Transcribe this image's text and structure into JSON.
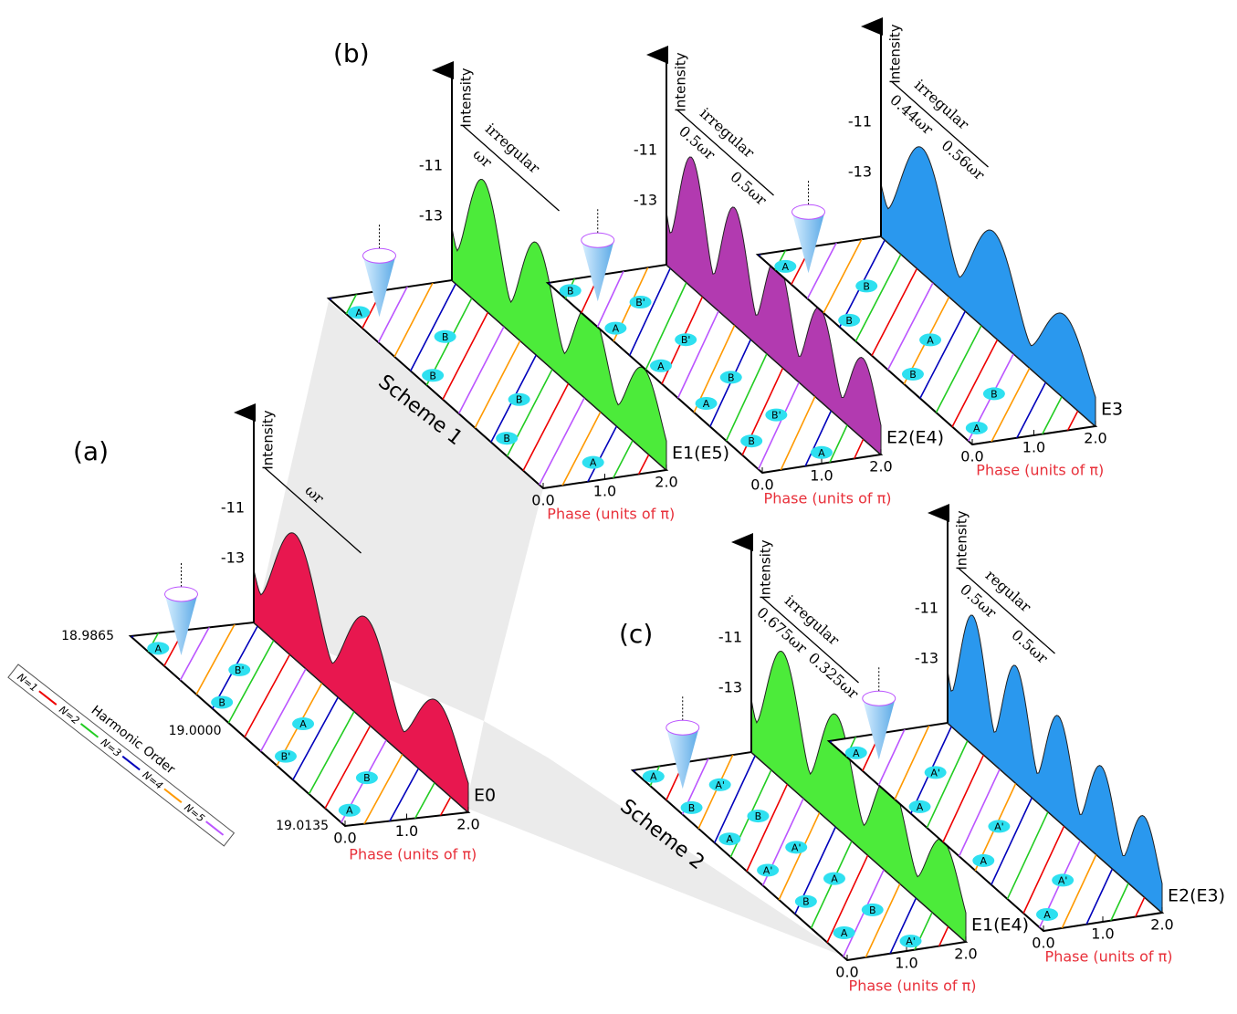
{
  "figure_labels": [
    "(a)",
    "(b)",
    "(c)"
  ],
  "schemes": [
    "Scheme 1",
    "Scheme 2"
  ],
  "energy_ticks": [
    "18.9865",
    "19.0000",
    "19.0135"
  ],
  "legend": {
    "title": "Harmonic Order",
    "items": [
      "N=1",
      "N=2",
      "N=3",
      "N=4",
      "N=5"
    ]
  },
  "panels": [
    {
      "axis_label": "Intensity",
      "ticks": [
        "-11",
        "-13"
      ],
      "energy": "E0",
      "phase_label": "Phase (units of π)",
      "phase_ticks": [
        "0.0",
        "1.0",
        "2.0"
      ],
      "annotations": [
        "ωr"
      ],
      "points": [
        "A",
        "B'",
        "B",
        "A",
        "B'",
        "B",
        "A"
      ]
    },
    {
      "axis_label": "Intensity",
      "ticks": [
        "-11",
        "-13"
      ],
      "energy": "E1(E5)",
      "phase_label": "Phase (units of π)",
      "phase_ticks": [
        "0.0",
        "1.0",
        "2.0"
      ],
      "annotations": [
        "irregular",
        "ωr"
      ],
      "points": [
        "A",
        "B",
        "B",
        "B",
        "B",
        "A"
      ]
    },
    {
      "axis_label": "Intensity",
      "ticks": [
        "-11",
        "-13"
      ],
      "energy": "E2(E4)",
      "phase_label": "Phase (units of π)",
      "phase_ticks": [
        "0.0",
        "1.0",
        "2.0"
      ],
      "annotations": [
        "irregular",
        "0.5ωr",
        "0.5ωr"
      ],
      "points": [
        "B",
        "B'",
        "A",
        "B'",
        "A",
        "B",
        "A",
        "B'",
        "B",
        "A"
      ]
    },
    {
      "axis_label": "Intensity",
      "ticks": [
        "-11",
        "-13"
      ],
      "energy": "E3",
      "phase_label": "Phase (units of π)",
      "phase_ticks": [
        "0.0",
        "1.0",
        "2.0"
      ],
      "annotations": [
        "irregular",
        "0.44ωr",
        "0.56ωr"
      ],
      "points": [
        "A",
        "B",
        "B",
        "A",
        "B",
        "B",
        "A"
      ]
    },
    {
      "axis_label": "Intensity",
      "ticks": [
        "-11",
        "-13"
      ],
      "energy": "E1(E4)",
      "phase_label": "Phase (units of π)",
      "phase_ticks": [
        "0.0",
        "1.0",
        "2.0"
      ],
      "annotations": [
        "irregular",
        "0.675ωr",
        "0.325ωr"
      ],
      "points": [
        "A",
        "A'",
        "B",
        "B",
        "A",
        "A'",
        "A'",
        "A",
        "B",
        "B",
        "A",
        "A'"
      ]
    },
    {
      "axis_label": "Intensity",
      "ticks": [
        "-11",
        "-13"
      ],
      "energy": "E2(E3)",
      "phase_label": "Phase (units of π)",
      "phase_ticks": [
        "0.0",
        "1.0",
        "2.0"
      ],
      "annotations": [
        "regular",
        "0.5ωr",
        "0.5ωr"
      ],
      "points": [
        "A",
        "A'",
        "A",
        "A'",
        "A",
        "A'",
        "A"
      ]
    }
  ]
}
